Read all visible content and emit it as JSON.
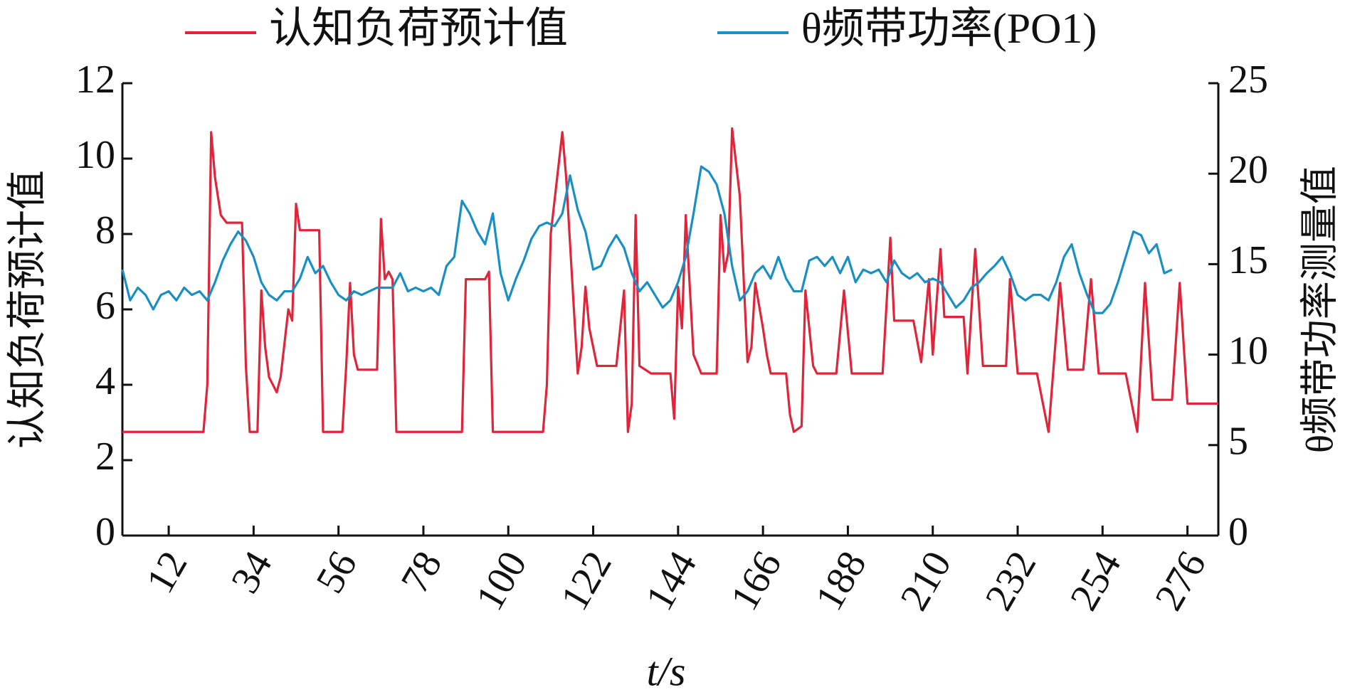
{
  "chart_data": {
    "type": "line",
    "x_label": "t/s",
    "y_label": "认知负荷预计值",
    "y2_label": "θ频带功率测量值",
    "xlim": [
      0,
      284
    ],
    "xticks": [
      12,
      34,
      56,
      78,
      100,
      122,
      144,
      166,
      188,
      210,
      232,
      254,
      276
    ],
    "ylim": [
      0,
      12
    ],
    "yticks": [
      0,
      2,
      4,
      6,
      8,
      10,
      12
    ],
    "y2lim": [
      0,
      25
    ],
    "y2ticks": [
      0,
      5,
      10,
      15,
      20,
      25
    ],
    "series": [
      {
        "name": "认知负荷预计值",
        "color": "#e0243a",
        "axis": "y",
        "x": [
          0,
          21,
          22,
          23,
          24,
          25.5,
          27,
          31,
          32,
          33,
          35,
          36,
          37,
          38,
          40,
          41,
          43,
          44,
          45,
          46,
          51,
          52,
          57,
          58,
          59,
          60,
          61,
          66,
          67,
          68,
          69,
          70,
          71,
          88,
          89,
          94,
          95,
          96,
          109,
          110,
          111,
          114,
          115,
          117,
          118,
          119,
          120,
          121,
          122,
          123,
          128,
          129,
          130,
          131,
          132,
          133,
          134,
          137,
          142,
          143,
          144,
          145,
          146,
          148,
          150,
          154,
          155,
          156,
          157,
          158,
          160,
          162,
          163,
          164,
          166,
          167,
          168,
          172,
          173,
          174,
          176,
          177,
          179,
          180,
          185,
          187,
          189,
          197,
          199,
          200,
          205,
          207,
          209,
          210,
          212,
          213,
          218,
          219,
          221,
          223,
          229,
          230,
          232,
          237,
          240,
          243,
          245,
          249,
          251,
          253,
          260,
          263,
          265,
          267,
          272,
          274,
          276,
          284
        ],
        "values": [
          2.75,
          2.75,
          4,
          10.7,
          9.5,
          8.5,
          8.3,
          8.3,
          4.5,
          2.75,
          2.75,
          6.5,
          5,
          4.2,
          3.8,
          4.2,
          6,
          5.7,
          8.8,
          8.1,
          8.1,
          2.75,
          2.75,
          4.5,
          6.7,
          4.8,
          4.4,
          4.4,
          8.4,
          6.8,
          7,
          6.8,
          2.75,
          2.75,
          6.8,
          6.8,
          7,
          2.75,
          2.75,
          4,
          8,
          10.7,
          9.5,
          6,
          4.3,
          5,
          6.6,
          5.5,
          5,
          4.5,
          4.5,
          5.5,
          6.5,
          2.75,
          3.5,
          8.5,
          4.5,
          4.3,
          4.3,
          3.1,
          6.6,
          5.5,
          8.5,
          4.8,
          4.3,
          4.3,
          8.5,
          7,
          7.5,
          10.8,
          9,
          4.6,
          5,
          6.7,
          5.5,
          4.8,
          4.3,
          4.3,
          3.2,
          2.75,
          2.9,
          6.5,
          4.5,
          4.3,
          4.3,
          6.5,
          4.3,
          4.3,
          7.9,
          5.7,
          5.7,
          4.6,
          6.8,
          4.8,
          7.6,
          5.8,
          5.8,
          4.3,
          7.6,
          4.5,
          4.5,
          6.8,
          4.3,
          4.3,
          2.75,
          6.7,
          4.4,
          4.4,
          6.8,
          4.3,
          4.3,
          2.75,
          6.7,
          3.6,
          3.6,
          6.7,
          3.5,
          3.5
        ]
      },
      {
        "name": "θ频带功率(PO1)",
        "color": "#1a8fc4",
        "axis": "y2",
        "x": [
          0,
          2,
          4,
          6,
          8,
          10,
          12,
          14,
          16,
          18,
          20,
          22,
          24,
          26,
          28,
          30,
          32,
          34,
          36,
          38,
          40,
          42,
          44,
          46,
          48,
          50,
          52,
          54,
          56,
          58,
          60,
          62,
          64,
          66,
          68,
          70,
          72,
          74,
          76,
          78,
          80,
          82,
          84,
          86,
          88,
          90,
          92,
          94,
          96,
          98,
          100,
          102,
          104,
          106,
          108,
          110,
          112,
          114,
          116,
          118,
          120,
          122,
          124,
          126,
          128,
          130,
          132,
          134,
          136,
          138,
          140,
          142,
          144,
          146,
          148,
          150,
          152,
          154,
          156,
          158,
          160,
          162,
          164,
          166,
          168,
          170,
          172,
          174,
          176,
          178,
          180,
          182,
          184,
          186,
          188,
          190,
          192,
          194,
          196,
          198,
          200,
          202,
          204,
          206,
          208,
          210,
          212,
          214,
          216,
          218,
          220,
          222,
          224,
          226,
          228,
          230,
          232,
          234,
          236,
          238,
          240,
          242,
          244,
          246,
          248,
          250,
          252,
          254,
          256,
          258,
          260,
          262,
          264,
          266,
          268,
          270,
          272
        ],
        "values": [
          14.7,
          13,
          13.7,
          13.3,
          12.5,
          13.3,
          13.5,
          13,
          13.7,
          13.3,
          13.5,
          13,
          14,
          15.2,
          16.1,
          16.8,
          16.3,
          15.4,
          14,
          13.3,
          13,
          13.5,
          13.5,
          14.2,
          15.4,
          14.5,
          14.9,
          14,
          13.3,
          13,
          13.5,
          13.3,
          13.5,
          13.7,
          13.7,
          13.7,
          14.5,
          13.5,
          13.7,
          13.5,
          13.7,
          13.3,
          14.9,
          15.4,
          18.5,
          17.8,
          16.8,
          16.1,
          17.8,
          14.5,
          13,
          14.2,
          15.2,
          16.4,
          17.1,
          17.3,
          17.1,
          17.8,
          19.9,
          18,
          16.8,
          14.7,
          14.9,
          15.9,
          16.6,
          15.9,
          14.5,
          13.5,
          14,
          13.3,
          12.6,
          13,
          14,
          15.4,
          17.8,
          20.4,
          20.1,
          19.4,
          17.8,
          14.9,
          13,
          13.5,
          14.5,
          14.9,
          14.2,
          15.4,
          14.2,
          13.5,
          13.5,
          15.2,
          15.4,
          14.9,
          15.4,
          14.5,
          15.4,
          14,
          14.7,
          14.5,
          14.7,
          14,
          15.2,
          14.5,
          14.2,
          14.5,
          14,
          14.2,
          14,
          13.3,
          12.6,
          13,
          13.7,
          14,
          14.5,
          14.9,
          15.4,
          14.5,
          13.3,
          13,
          13.3,
          13.3,
          13,
          14,
          15.4,
          16.1,
          14.5,
          13.3,
          12.3,
          12.3,
          12.8,
          14,
          15.4,
          16.8,
          16.6,
          15.6,
          16.1,
          14.5,
          14.7
        ]
      }
    ]
  }
}
